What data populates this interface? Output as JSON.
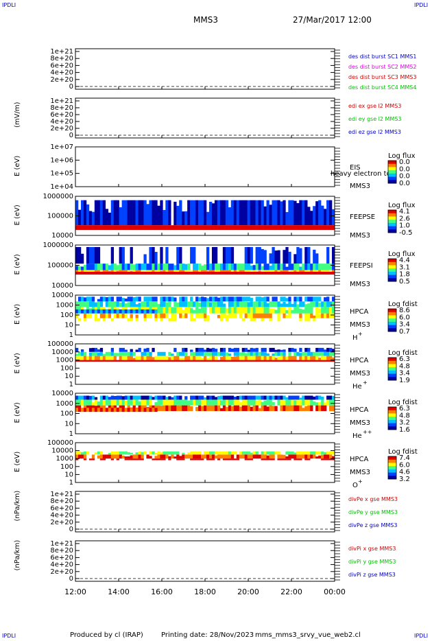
{
  "header": {
    "corner_left": "IPDLI",
    "corner_right": "IPDLI",
    "corner_bottom_left": "IPDLI",
    "corner_bottom_right": "IPDLI",
    "mission": "MMS3",
    "date": "27/Mar/2017 12:00"
  },
  "footer": {
    "produced": "Produced by cl (IRAP)",
    "printing": "Printing date: 28/Nov/2023",
    "script": "mms_mms3_srvy_vue_web2.cl"
  },
  "colors": {
    "red": "#d00000",
    "magenta": "#e000e0",
    "green": "#00c000",
    "blue": "#0000c8",
    "spectrogram_scale": [
      "#0000a0",
      "#0040ff",
      "#00c0ff",
      "#40ff80",
      "#ffff00",
      "#ff8000",
      "#e00000"
    ]
  },
  "chart_data": [
    {
      "type": "line",
      "ytick_labels": [
        "1e+21",
        "8e+20",
        "6e+20",
        "4e+20",
        "2e+20",
        "0"
      ],
      "ylabel": "",
      "legend": [
        {
          "text": "des dist burst SC1 MMS1",
          "color": "blue"
        },
        {
          "text": "des dist burst SC2 MMS2",
          "color": "magenta"
        },
        {
          "text": "des dist burst SC3 MMS3",
          "color": "red"
        },
        {
          "text": "des dist burst SC4 MMS4",
          "color": "green"
        }
      ]
    },
    {
      "type": "line",
      "ytick_labels": [
        "1e+21",
        "8e+20",
        "6e+20",
        "4e+20",
        "2e+20",
        "0"
      ],
      "ylabel": "(mV/m)",
      "legend": [
        {
          "text": "edi ex gse l2 MMS3",
          "color": "red"
        },
        {
          "text": "edi ey gse l2 MMS3",
          "color": "green"
        },
        {
          "text": "edi ez gse l2 MMS3",
          "color": "blue"
        }
      ]
    },
    {
      "type": "heatmap",
      "ytick_labels": [
        "1e+07",
        "1e+06",
        "1e+05",
        "1e+04"
      ],
      "ylabel": "E (eV)",
      "instrument": "EIS",
      "spacecraft": "MMS3",
      "extra_text": "heavy electron to",
      "colorbar_title": "Log flux",
      "colorbar_labels": [
        "0.0",
        "0.0",
        "0.0",
        "0.0"
      ]
    },
    {
      "type": "heatmap",
      "ytick_labels": [
        "1000000",
        "100000",
        "10000"
      ],
      "ylabel": "E (eV)",
      "instrument": "FEEPSE",
      "spacecraft": "MMS3",
      "colorbar_title": "Log flux",
      "colorbar_labels": [
        "4.1",
        "2.6",
        "1.0",
        "-0.5"
      ]
    },
    {
      "type": "heatmap",
      "ytick_labels": [
        "1000000",
        "100000",
        "10000"
      ],
      "ylabel": "E (eV)",
      "instrument": "FEEPSI",
      "spacecraft": "MMS3",
      "colorbar_title": "Log flux",
      "colorbar_labels": [
        "4.4",
        "3.1",
        "1.8",
        "0.5"
      ]
    },
    {
      "type": "heatmap",
      "ytick_labels": [
        "10000",
        "1000",
        "100",
        "10",
        "1"
      ],
      "ylabel": "E (eV)",
      "instrument": "HPCA",
      "spacecraft": "MMS3",
      "species": "H",
      "species_sup": "+",
      "colorbar_title": "Log fdist",
      "colorbar_labels": [
        "8.6",
        "6.0",
        "3.4",
        "0.7"
      ]
    },
    {
      "type": "heatmap",
      "ytick_labels": [
        "100000",
        "10000",
        "1000",
        "100",
        "10",
        "1"
      ],
      "ylabel": "E (eV)",
      "instrument": "HPCA",
      "spacecraft": "MMS3",
      "species": "He",
      "species_sup": "+",
      "colorbar_title": "Log fdist",
      "colorbar_labels": [
        "6.3",
        "4.8",
        "3.4",
        "1.9"
      ]
    },
    {
      "type": "heatmap",
      "ytick_labels": [
        "10000",
        "1000",
        "100",
        "10",
        "1"
      ],
      "ylabel": "E (eV)",
      "instrument": "HPCA",
      "spacecraft": "MMS3",
      "species": "He",
      "species_sup": "++",
      "colorbar_title": "Log fdist",
      "colorbar_labels": [
        "6.3",
        "4.8",
        "3.2",
        "1.6"
      ]
    },
    {
      "type": "heatmap",
      "ytick_labels": [
        "100000",
        "10000",
        "1000",
        "100",
        "10",
        "1"
      ],
      "ylabel": "E (eV)",
      "instrument": "HPCA",
      "spacecraft": "MMS3",
      "species": "O",
      "species_sup": "+",
      "colorbar_title": "Log fdist",
      "colorbar_labels": [
        "7.4",
        "6.0",
        "4.6",
        "3.2"
      ]
    },
    {
      "type": "line",
      "ytick_labels": [
        "1e+21",
        "8e+20",
        "6e+20",
        "4e+20",
        "2e+20",
        "0"
      ],
      "ylabel": "(nPa/km)",
      "legend": [
        {
          "text": "divPe x gse MMS3",
          "color": "red"
        },
        {
          "text": "divPe y gse MMS3",
          "color": "green"
        },
        {
          "text": "divPe z gse MMS3",
          "color": "blue"
        }
      ]
    },
    {
      "type": "line",
      "ytick_labels": [
        "1e+21",
        "8e+20",
        "6e+20",
        "4e+20",
        "2e+20",
        "0"
      ],
      "ylabel": "(nPa/km)",
      "legend": [
        {
          "text": "divPi x gse MMS3",
          "color": "red"
        },
        {
          "text": "divPi y gse MMS3",
          "color": "green"
        },
        {
          "text": "divPi z gse MMS3",
          "color": "blue"
        }
      ]
    }
  ],
  "time_axis": [
    "12:00",
    "14:00",
    "16:00",
    "18:00",
    "20:00",
    "22:00",
    "00:00"
  ]
}
